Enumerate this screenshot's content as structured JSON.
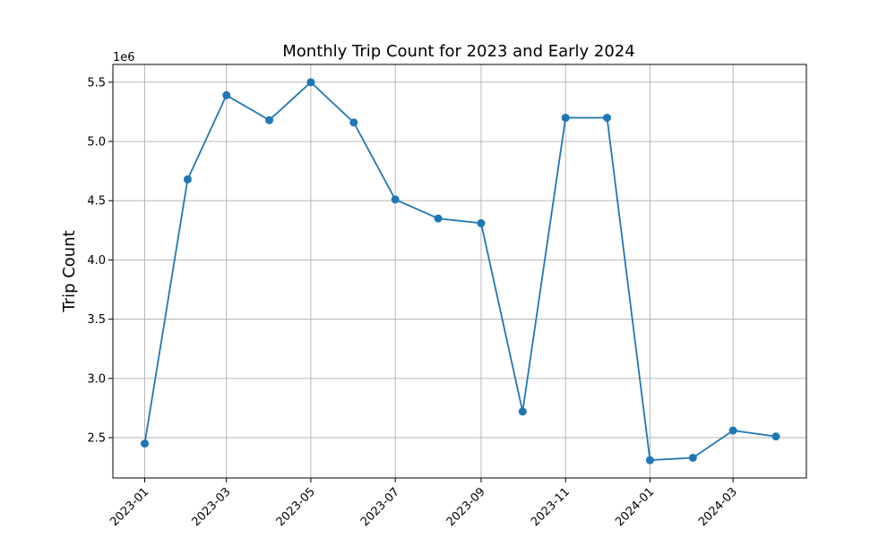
{
  "chart_data": {
    "type": "line",
    "title": "Monthly Trip Count for 2023 and Early 2024",
    "xlabel": "",
    "ylabel": "Trip Count",
    "y_offset_label": "1e6",
    "y_scale": 1000000,
    "grid": true,
    "x_tick_labels": [
      "2023-01",
      "2023-03",
      "2023-05",
      "2023-07",
      "2023-09",
      "2023-11",
      "2024-01",
      "2024-03"
    ],
    "y_tick_labels": [
      "2.5",
      "3.0",
      "3.5",
      "4.0",
      "4.5",
      "5.0",
      "5.5"
    ],
    "x_range": [
      "2022-12-09",
      "2024-04-23"
    ],
    "ylim": [
      2.16,
      5.65
    ],
    "series": [
      {
        "color": "#1f77b4",
        "marker": "circle",
        "x": [
          "2023-01",
          "2023-02",
          "2023-03",
          "2023-04",
          "2023-05",
          "2023-06",
          "2023-07",
          "2023-08",
          "2023-09",
          "2023-10",
          "2023-11",
          "2023-12",
          "2024-01",
          "2024-02",
          "2024-03",
          "2024-04"
        ],
        "values": [
          2.45,
          4.68,
          5.39,
          5.18,
          5.5,
          5.16,
          4.51,
          4.35,
          4.31,
          2.72,
          5.2,
          5.2,
          2.31,
          2.33,
          2.56,
          2.51
        ]
      }
    ]
  }
}
